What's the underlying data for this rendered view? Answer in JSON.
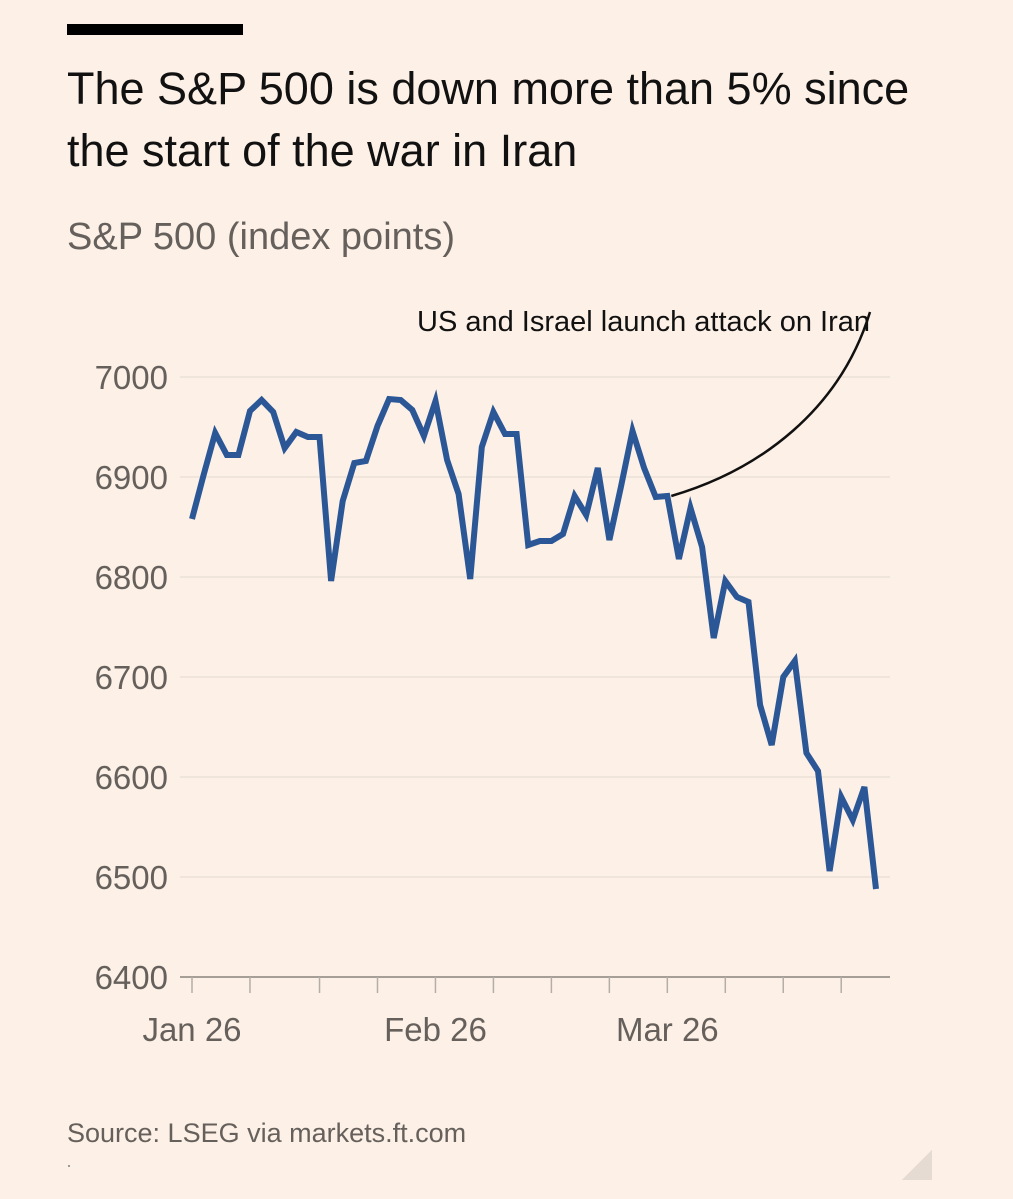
{
  "header": {
    "title": "The S&P 500 is down more than 5% since the start of the war in Iran",
    "subtitle": "S&P 500 (index points)"
  },
  "footer": {
    "source": "Source: LSEG via markets.ft.com"
  },
  "colors": {
    "background": "#fdf0e6",
    "line": "#2b5797",
    "text_muted": "#66605c",
    "gridline": "#ece1d7"
  },
  "chart_data": {
    "type": "line",
    "title": "The S&P 500 is down more than 5% since the start of the war in Iran",
    "ylabel": "S&P 500 (index points)",
    "xlabel": "",
    "ylim": [
      6400,
      7000
    ],
    "yticks": [
      7000,
      6900,
      6800,
      6700,
      6600,
      6500,
      6400
    ],
    "grid": true,
    "x_tick_labels": [
      {
        "label": "Jan 26",
        "index": 0
      },
      {
        "label": "Feb 26",
        "index": 21
      },
      {
        "label": "Mar 26",
        "index": 41
      }
    ],
    "x_minor_tick_indices": [
      0,
      5,
      11,
      16,
      21,
      26,
      31,
      36,
      41,
      46,
      51,
      56
    ],
    "series": [
      {
        "name": "S&P 500",
        "values": [
          6858,
          6902,
          6944,
          6922,
          6922,
          6966,
          6977,
          6965,
          6929,
          6945,
          6940,
          6940,
          6796,
          6876,
          6914,
          6916,
          6951,
          6978,
          6977,
          6967,
          6941,
          6976,
          6917,
          6883,
          6798,
          6930,
          6965,
          6943,
          6943,
          6832,
          6836,
          6836,
          6843,
          6881,
          6862,
          6909,
          6837,
          6890,
          6946,
          6909,
          6880,
          6881,
          6818,
          6869,
          6830,
          6739,
          6796,
          6780,
          6775,
          6672,
          6632,
          6700,
          6716,
          6624,
          6606,
          6506,
          6580,
          6557,
          6590,
          6488
        ]
      }
    ],
    "annotation": {
      "text": "US and Israel launch attack on Iran",
      "index": 41
    }
  }
}
